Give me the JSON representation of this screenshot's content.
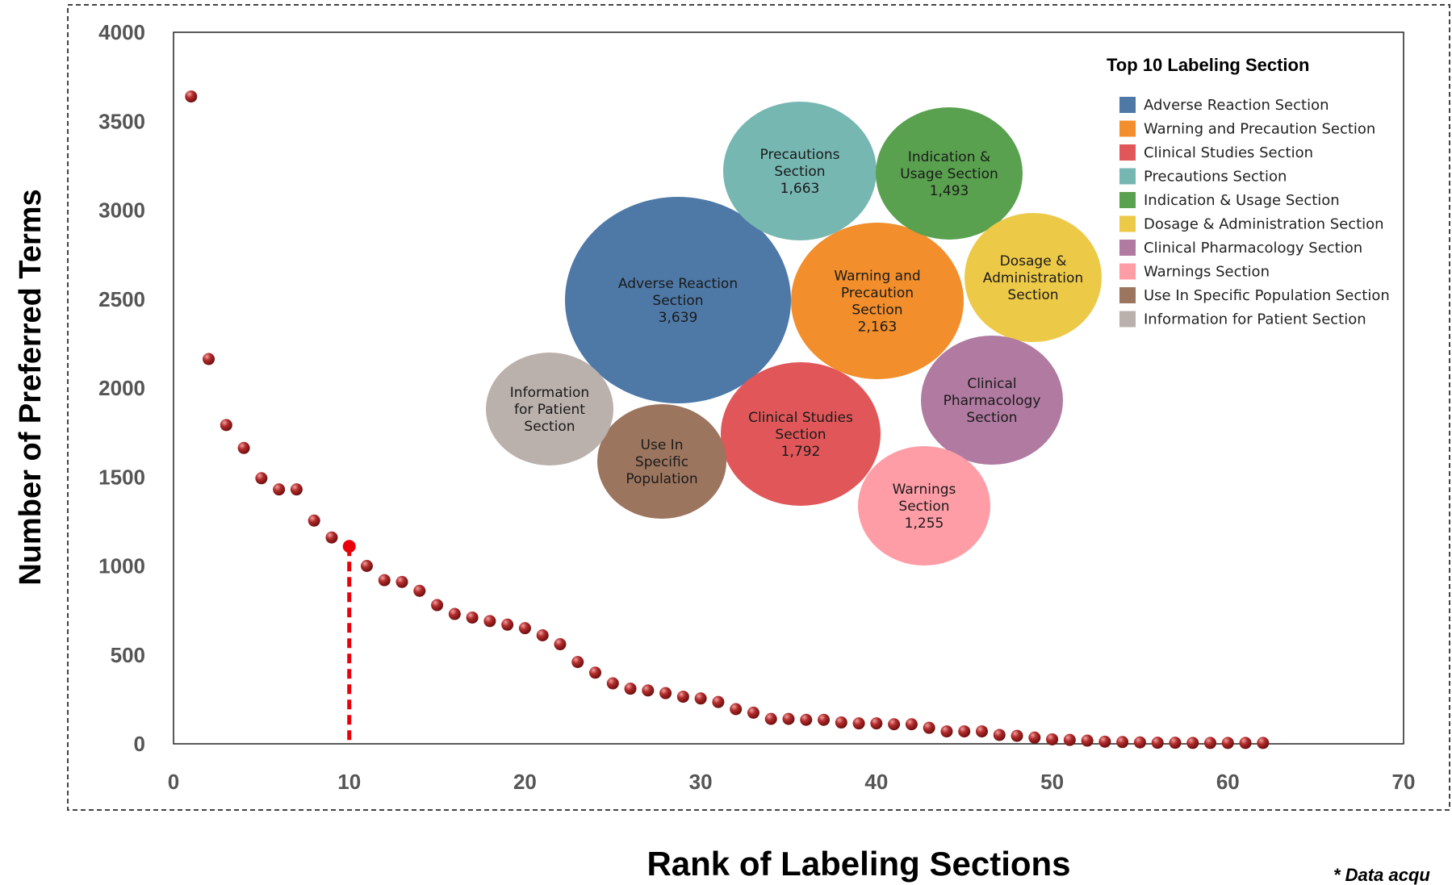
{
  "chart_data": {
    "type": "scatter",
    "xlabel": "Rank of Labeling Sections",
    "ylabel": "Number of Preferred Terms",
    "xlim": [
      0,
      70
    ],
    "ylim": [
      0,
      4000
    ],
    "x_ticks": [
      "0",
      "10",
      "20",
      "30",
      "40",
      "50",
      "60",
      "70"
    ],
    "y_ticks": [
      "0",
      "500",
      "1000",
      "1500",
      "2000",
      "2500",
      "3000",
      "3500",
      "4000"
    ],
    "marker_color": "#b22a2a",
    "highlight": {
      "x": 10,
      "color": "#e8000b",
      "style": "dashed"
    },
    "footnote": "* Data acqu",
    "points": [
      [
        1,
        3639
      ],
      [
        2,
        2163
      ],
      [
        3,
        1792
      ],
      [
        4,
        1663
      ],
      [
        5,
        1493
      ],
      [
        6,
        1430
      ],
      [
        7,
        1430
      ],
      [
        8,
        1255
      ],
      [
        9,
        1160
      ],
      [
        10,
        1110
      ],
      [
        11,
        1000
      ],
      [
        12,
        920
      ],
      [
        13,
        910
      ],
      [
        14,
        860
      ],
      [
        15,
        780
      ],
      [
        16,
        730
      ],
      [
        17,
        710
      ],
      [
        18,
        690
      ],
      [
        19,
        670
      ],
      [
        20,
        650
      ],
      [
        21,
        610
      ],
      [
        22,
        560
      ],
      [
        23,
        460
      ],
      [
        24,
        400
      ],
      [
        25,
        340
      ],
      [
        26,
        310
      ],
      [
        27,
        300
      ],
      [
        28,
        285
      ],
      [
        29,
        265
      ],
      [
        30,
        255
      ],
      [
        31,
        235
      ],
      [
        32,
        195
      ],
      [
        33,
        175
      ],
      [
        34,
        140
      ],
      [
        35,
        140
      ],
      [
        36,
        135
      ],
      [
        37,
        135
      ],
      [
        38,
        120
      ],
      [
        39,
        115
      ],
      [
        40,
        115
      ],
      [
        41,
        110
      ],
      [
        42,
        110
      ],
      [
        43,
        90
      ],
      [
        44,
        70
      ],
      [
        45,
        70
      ],
      [
        46,
        70
      ],
      [
        47,
        50
      ],
      [
        48,
        45
      ],
      [
        49,
        35
      ],
      [
        50,
        25
      ],
      [
        51,
        22
      ],
      [
        52,
        18
      ],
      [
        53,
        12
      ],
      [
        54,
        10
      ],
      [
        55,
        8
      ],
      [
        56,
        6
      ],
      [
        57,
        6
      ],
      [
        58,
        5
      ],
      [
        59,
        5
      ],
      [
        60,
        5
      ],
      [
        61,
        5
      ],
      [
        62,
        5
      ]
    ],
    "inset": {
      "type": "bubble",
      "legend_title": "Top 10 Labeling Section",
      "bubbles": [
        {
          "label_lines": [
            "Adverse Reaction",
            "Section",
            "3,639"
          ],
          "legend": "Adverse Reaction Section",
          "value": 3639,
          "color": "#4e79a7"
        },
        {
          "label_lines": [
            "Warning and",
            "Precaution",
            "Section",
            "2,163"
          ],
          "legend": "Warning and Precaution Section",
          "value": 2163,
          "color": "#f28e2b"
        },
        {
          "label_lines": [
            "Clinical Studies",
            "Section",
            "1,792"
          ],
          "legend": "Clinical Studies Section",
          "value": 1792,
          "color": "#e15759"
        },
        {
          "label_lines": [
            "Precautions",
            "Section",
            "1,663"
          ],
          "legend": "Precautions Section",
          "value": 1663,
          "color": "#76b7b2"
        },
        {
          "label_lines": [
            "Indication &",
            "Usage Section",
            "1,493"
          ],
          "legend": "Indication & Usage Section",
          "value": 1493,
          "color": "#59a14f"
        },
        {
          "label_lines": [
            "Dosage  &",
            "Administration",
            "Section"
          ],
          "legend": "Dosage  & Administration Section",
          "color": "#edc948"
        },
        {
          "label_lines": [
            "Clinical",
            "Pharmacology",
            "Section"
          ],
          "legend": "Clinical Pharmacology Section",
          "color": "#b07aa1"
        },
        {
          "label_lines": [
            "Warnings",
            "Section",
            "1,255"
          ],
          "legend": "Warnings Section",
          "value": 1255,
          "color": "#ff9da7"
        },
        {
          "label_lines": [
            "Use In",
            "Specific",
            "Population"
          ],
          "legend": "Use In Specific Population Section",
          "color": "#9c755f"
        },
        {
          "label_lines": [
            "Information",
            "for Patient",
            "Section"
          ],
          "legend": "Information for Patient Section",
          "color": "#bab0ac"
        }
      ]
    }
  }
}
